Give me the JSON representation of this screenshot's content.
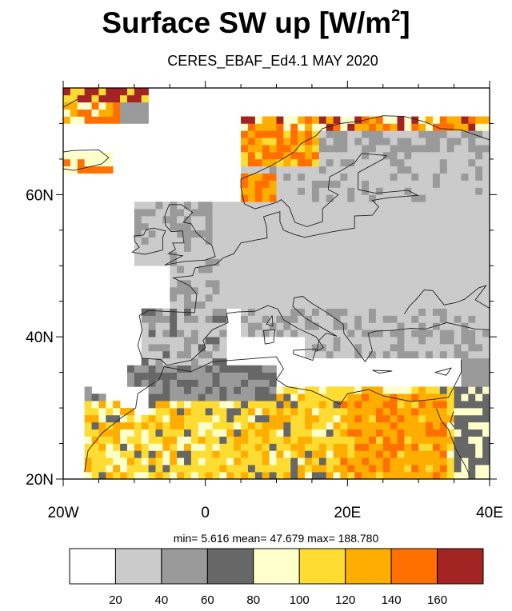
{
  "title": {
    "main": "Surface SW up [W/m",
    "sup": "2",
    "close": "]"
  },
  "subtitle": "CERES_EBAF_Ed4.1 MAY 2020",
  "map": {
    "lon_range": [
      -20,
      40
    ],
    "lat_range": [
      20,
      75
    ],
    "lat_ticks": [
      {
        "value": 20,
        "label": "20N"
      },
      {
        "value": 40,
        "label": "40N"
      },
      {
        "value": 60,
        "label": "60N"
      }
    ],
    "lon_ticks": [
      {
        "value": -20,
        "label": "20W"
      },
      {
        "value": 0,
        "label": "0"
      },
      {
        "value": 20,
        "label": "20E"
      },
      {
        "value": 40,
        "label": "40E"
      }
    ]
  },
  "stats": {
    "min_label": "min=",
    "min": "5.616",
    "mean_label": "mean=",
    "mean": "47.679",
    "max_label": "max=",
    "max": "188.780"
  },
  "colorbar": {
    "colors": [
      "#ffffff",
      "#cbcbcb",
      "#9a9a9a",
      "#676767",
      "#ffffcc",
      "#fedc32",
      "#ffae00",
      "#ff7000",
      "#a42323"
    ],
    "labels": [
      "20",
      "40",
      "60",
      "80",
      "100",
      "120",
      "140",
      "160"
    ]
  }
}
